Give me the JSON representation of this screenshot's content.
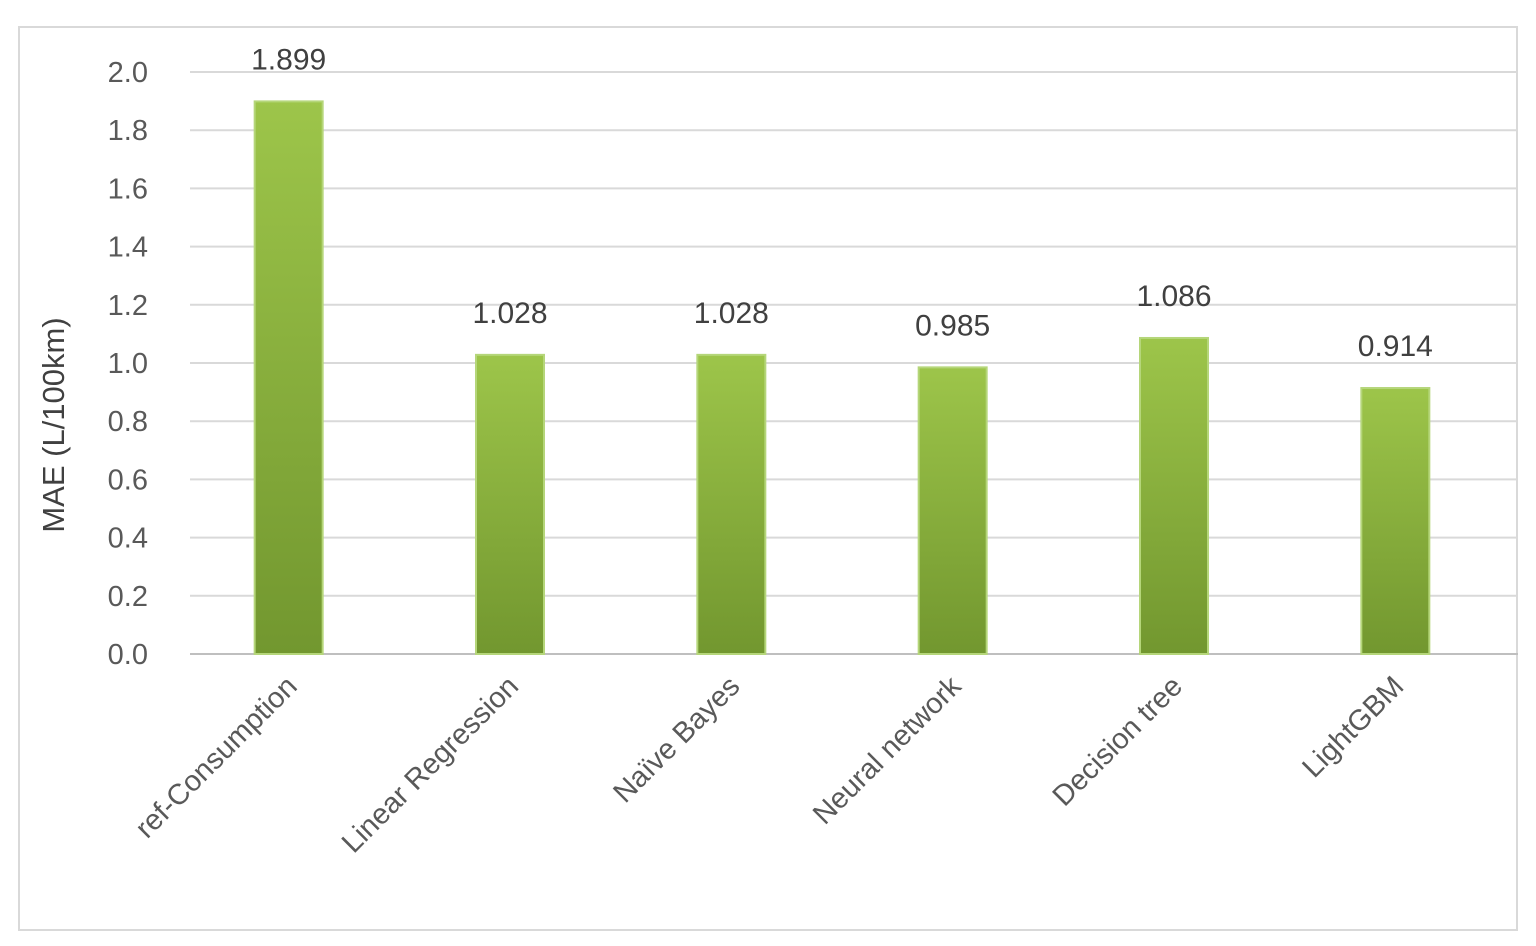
{
  "chart_data": {
    "type": "bar",
    "title": "",
    "xlabel": "",
    "ylabel": "MAE (L/100km)",
    "categories": [
      "ref-Consumption",
      "Linear Regression",
      "Naïve Bayes",
      "Neural network",
      "Decision tree",
      "LightGBM"
    ],
    "values": [
      1.899,
      1.028,
      1.028,
      0.985,
      1.086,
      0.914
    ],
    "value_labels": [
      "1.899",
      "1.028",
      "1.028",
      "0.985",
      "1.086",
      "0.914"
    ],
    "ylim": [
      0,
      2.0
    ],
    "yticks": [
      "0.0",
      "0.2",
      "0.4",
      "0.6",
      "0.8",
      "1.0",
      "1.2",
      "1.4",
      "1.6",
      "1.8",
      "2.0"
    ],
    "grid": true,
    "legend": "none",
    "colors": {
      "bar_top": "#9dc54a",
      "bar_bottom": "#72972f",
      "grid": "#d9d9d9",
      "text": "#595959"
    }
  }
}
